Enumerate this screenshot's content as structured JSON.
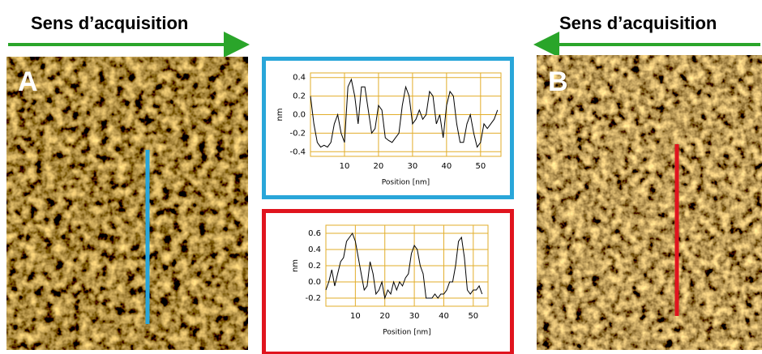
{
  "figure": {
    "headings": [
      "Sens d’acquisition",
      "Sens d’acquisition"
    ],
    "panels": [
      "A",
      "B"
    ]
  },
  "chart_data": [
    {
      "type": "line",
      "color": "#000000",
      "grid": true,
      "grid_color": "#e2ad2a",
      "xlabel": "Position [nm]",
      "ylabel": "nm",
      "xlim": [
        0,
        56
      ],
      "ylim": [
        -0.45,
        0.45
      ],
      "xticks": [
        10,
        20,
        30,
        40,
        50
      ],
      "yticks": [
        -0.4,
        -0.2,
        {
          "value": 0,
          "label": "0.0"
        },
        0.2,
        0.4
      ],
      "x": [
        0,
        1,
        2,
        3,
        4,
        5,
        6,
        7,
        8,
        9,
        10,
        11,
        12,
        13,
        14,
        15,
        16,
        17,
        18,
        19,
        20,
        21,
        22,
        23,
        24,
        25,
        26,
        27,
        28,
        29,
        30,
        31,
        32,
        33,
        34,
        35,
        36,
        37,
        38,
        39,
        40,
        41,
        42,
        43,
        44,
        45,
        46,
        47,
        48,
        49,
        50,
        51,
        52,
        53,
        54,
        55
      ],
      "values": [
        0.2,
        -0.1,
        -0.3,
        -0.35,
        -0.33,
        -0.35,
        -0.3,
        -0.1,
        0,
        -0.2,
        -0.3,
        0.3,
        0.38,
        0.2,
        -0.1,
        0.3,
        0.3,
        0.05,
        -0.2,
        -0.15,
        0.1,
        0.05,
        -0.25,
        -0.28,
        -0.3,
        -0.25,
        -0.2,
        0.1,
        0.3,
        0.2,
        -0.1,
        -0.05,
        0.05,
        -0.05,
        0,
        0.25,
        0.2,
        -0.1,
        0,
        -0.25,
        0.1,
        0.25,
        0.2,
        -0.1,
        -0.3,
        -0.3,
        -0.1,
        0,
        -0.2,
        -0.35,
        -0.3,
        -0.1,
        -0.15,
        -0.1,
        -0.05,
        0.05
      ]
    },
    {
      "type": "line",
      "color": "#000000",
      "grid": true,
      "grid_color": "#e2ad2a",
      "xlabel": "Position [nm]",
      "ylabel": "nm",
      "xlim": [
        0,
        55
      ],
      "ylim": [
        -0.3,
        0.7
      ],
      "xticks": [
        10,
        20,
        30,
        40,
        50
      ],
      "yticks": [
        -0.2,
        {
          "value": 0,
          "label": "0.0"
        },
        0.2,
        0.4,
        0.6
      ],
      "x": [
        0,
        1,
        2,
        3,
        4,
        5,
        6,
        7,
        8,
        9,
        10,
        11,
        12,
        13,
        14,
        15,
        16,
        17,
        18,
        19,
        20,
        21,
        22,
        23,
        24,
        25,
        26,
        27,
        28,
        29,
        30,
        31,
        32,
        33,
        34,
        35,
        36,
        37,
        38,
        39,
        40,
        41,
        42,
        43,
        44,
        45,
        46,
        47,
        48,
        49,
        50,
        51,
        52,
        53
      ],
      "values": [
        -0.1,
        0,
        0.15,
        -0.05,
        0.1,
        0.25,
        0.3,
        0.5,
        0.55,
        0.6,
        0.5,
        0.3,
        0.1,
        -0.1,
        -0.05,
        0.25,
        0.1,
        -0.15,
        -0.1,
        0,
        -0.2,
        -0.1,
        -0.15,
        0,
        -0.1,
        0,
        -0.05,
        0.05,
        0.1,
        0.35,
        0.45,
        0.4,
        0.2,
        0.1,
        -0.2,
        -0.2,
        -0.2,
        -0.15,
        -0.2,
        -0.15,
        -0.15,
        -0.1,
        0,
        0,
        0.2,
        0.5,
        0.55,
        0.3,
        -0.1,
        -0.15,
        -0.1,
        -0.1,
        -0.05,
        -0.15
      ]
    }
  ]
}
